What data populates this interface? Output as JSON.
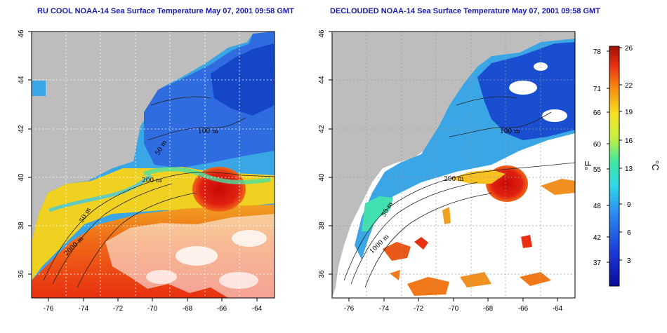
{
  "titles": {
    "left": "RU COOL NOAA-14 Sea Surface Temperature May 07, 2001 09:58 GMT",
    "right": "DECLOUDED NOAA-14 Sea Surface Temperature May 07, 2001 09:58 GMT"
  },
  "map": {
    "lon_ticks": [
      "-76",
      "-74",
      "-72",
      "-70",
      "-68",
      "-66",
      "-64"
    ],
    "lat_ticks": [
      "36",
      "38",
      "40",
      "42",
      "44",
      "46"
    ],
    "lon_range": [
      -77,
      -63
    ],
    "lat_range": [
      35,
      46
    ],
    "contour_labels": {
      "left": [
        "50 m",
        "100 m",
        "200 m",
        "50 m",
        "2000 m"
      ],
      "right": [
        "100 m",
        "200 m",
        "50 m",
        "1000 m"
      ]
    }
  },
  "colorbar": {
    "fahrenheit_ticks": [
      "78",
      "71",
      "66",
      "60",
      "55",
      "48",
      "42",
      "37"
    ],
    "celsius_ticks": [
      "26",
      "22",
      "19",
      "16",
      "13",
      "9",
      "6",
      "3"
    ],
    "fahrenheit_label": "°F",
    "celsius_label": "°C"
  },
  "colors": {
    "land": "#bdbdbd",
    "title": "#1a1aa8",
    "cold": "#1540c8",
    "warm": "#d81a0a"
  }
}
